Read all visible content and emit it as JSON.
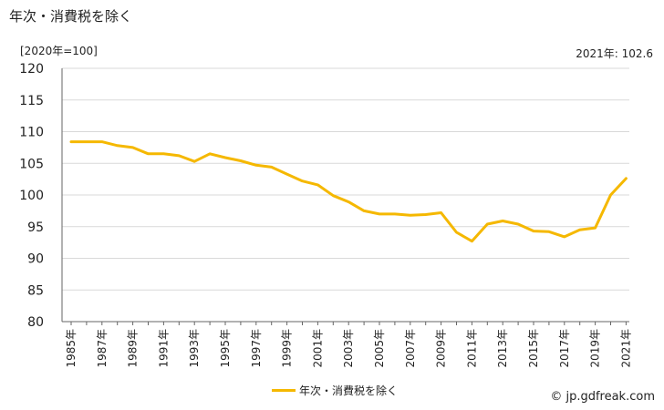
{
  "header": {
    "title": "年次・消費税を除く",
    "unit_label": "[2020年=100]",
    "latest_label": "2021年: 102.6"
  },
  "footer": {
    "credit": "© jp.gdfreak.com"
  },
  "colors": {
    "line": "#f5b800",
    "grid": "#d9d9d9",
    "axis": "#666666",
    "text": "#222222"
  },
  "chart_data": {
    "type": "line",
    "xlabel": "",
    "ylabel": "",
    "ylim": [
      80,
      120
    ],
    "yticks": [
      80,
      85,
      90,
      95,
      100,
      105,
      110,
      115,
      120
    ],
    "x": [
      "1985年",
      "1986年",
      "1987年",
      "1988年",
      "1989年",
      "1990年",
      "1991年",
      "1992年",
      "1993年",
      "1994年",
      "1995年",
      "1996年",
      "1997年",
      "1998年",
      "1999年",
      "2000年",
      "2001年",
      "2002年",
      "2003年",
      "2004年",
      "2005年",
      "2006年",
      "2007年",
      "2008年",
      "2009年",
      "2010年",
      "2011年",
      "2012年",
      "2013年",
      "2014年",
      "2015年",
      "2016年",
      "2017年",
      "2018年",
      "2019年",
      "2020年",
      "2021年"
    ],
    "x_tick_labels": [
      "1985年",
      "1987年",
      "1989年",
      "1991年",
      "1993年",
      "1995年",
      "1997年",
      "1999年",
      "2001年",
      "2003年",
      "2005年",
      "2007年",
      "2009年",
      "2011年",
      "2013年",
      "2015年",
      "2017年",
      "2019年",
      "2021年"
    ],
    "series": [
      {
        "name": "年次・消費税を除く",
        "values": [
          108.4,
          108.4,
          108.4,
          107.8,
          107.5,
          106.5,
          106.5,
          106.2,
          105.3,
          106.5,
          105.9,
          105.4,
          104.7,
          104.4,
          103.3,
          102.2,
          101.6,
          99.9,
          98.9,
          97.5,
          97.0,
          97.0,
          96.8,
          96.9,
          97.2,
          94.1,
          92.7,
          95.4,
          95.9,
          95.4,
          94.3,
          94.2,
          93.4,
          94.5,
          94.8,
          100.0,
          102.6
        ]
      }
    ]
  }
}
